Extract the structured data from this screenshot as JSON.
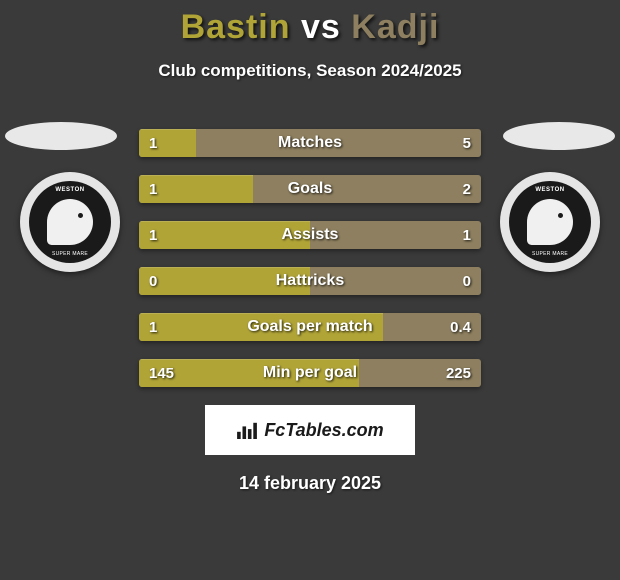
{
  "header": {
    "player1": "Bastin",
    "vs": "vs",
    "player2": "Kadji",
    "p1_color": "#b0a437",
    "vs_color": "#ffffff",
    "p2_color": "#8d7f5f",
    "subtitle": "Club competitions, Season 2024/2025"
  },
  "ellipse_color": "#e8e8e8",
  "badge": {
    "text_top": "WESTON",
    "text_bot": "SUPER MARE"
  },
  "bars": {
    "left_color": "#b0a437",
    "right_color": "#8d7f5f",
    "rows": [
      {
        "label": "Matches",
        "left": "1",
        "right": "5",
        "fill_pct": 16.7
      },
      {
        "label": "Goals",
        "left": "1",
        "right": "2",
        "fill_pct": 33.3
      },
      {
        "label": "Assists",
        "left": "1",
        "right": "1",
        "fill_pct": 50.0
      },
      {
        "label": "Hattricks",
        "left": "0",
        "right": "0",
        "fill_pct": 50.0
      },
      {
        "label": "Goals per match",
        "left": "1",
        "right": "0.4",
        "fill_pct": 71.4
      },
      {
        "label": "Min per goal",
        "left": "145",
        "right": "225",
        "fill_pct": 64.4
      }
    ]
  },
  "attribution": "FcTables.com",
  "date": "14 february 2025"
}
